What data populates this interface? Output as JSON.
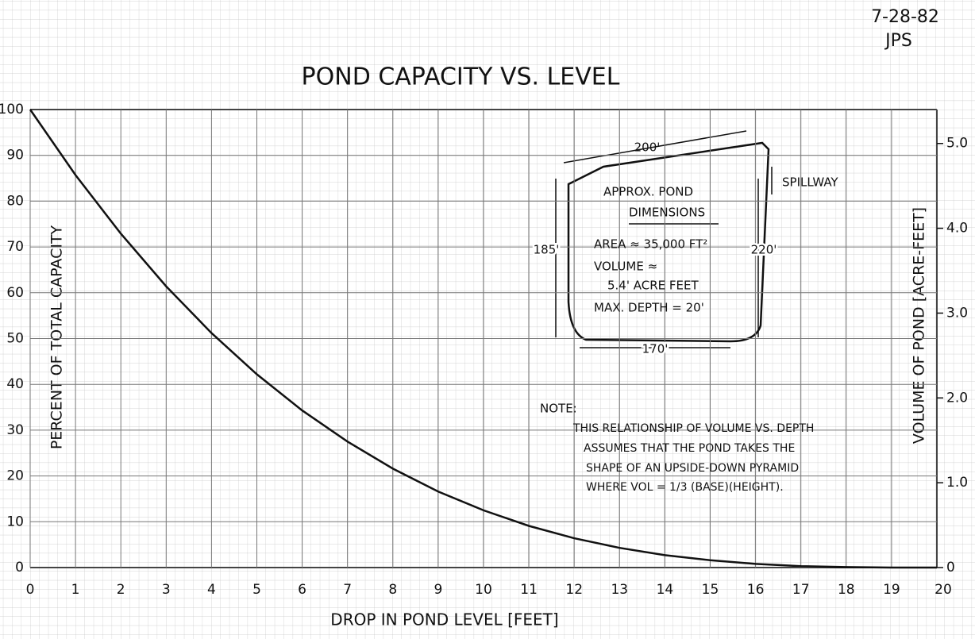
{
  "chart_data": {
    "type": "line",
    "title": "POND CAPACITY VS. LEVEL",
    "date": "7-28-82",
    "author": "JPS",
    "x_label": "DROP IN POND LEVEL [FEET]",
    "y_label": "PERCENT OF TOTAL CAPACITY",
    "y2_label": "VOLUME OF POND [ACRE-FEET]",
    "x": [
      0,
      1,
      2,
      3,
      4,
      5,
      6,
      7,
      8,
      9,
      10,
      11,
      12,
      13,
      14,
      15,
      16,
      17,
      18,
      19,
      20
    ],
    "values": [
      100,
      85.7,
      72.9,
      61.4,
      51.2,
      42.2,
      34.3,
      27.5,
      21.6,
      16.6,
      12.5,
      9.1,
      6.4,
      4.3,
      2.7,
      1.6,
      0.8,
      0.3,
      0.1,
      0,
      0
    ],
    "color": "#111111",
    "xlim": [
      0,
      20
    ],
    "xticks": [
      0,
      1,
      2,
      3,
      4,
      5,
      6,
      7,
      8,
      9,
      10,
      11,
      12,
      13,
      14,
      15,
      16,
      17,
      18,
      19,
      20
    ],
    "ylim": [
      0,
      100
    ],
    "yticks": [
      0,
      10,
      20,
      30,
      40,
      50,
      60,
      70,
      80,
      90,
      100
    ],
    "y2lim": [
      0,
      5.4
    ],
    "y2ticks": [
      0,
      {
        "value": 1,
        "label": "1.0"
      },
      {
        "value": 2,
        "label": "2.0"
      },
      {
        "value": 3,
        "label": "3.0"
      },
      {
        "value": 4,
        "label": "4.0"
      },
      {
        "value": 5,
        "label": "5.0"
      }
    ],
    "grid": true,
    "annotations": [
      "200'",
      "SPILLWAY",
      "APPROX. POND",
      "DIMENSIONS",
      "AREA ≈ 35,000 FT²",
      "VOLUME ≈",
      "5.4' ACRE FEET",
      "MAX. DEPTH = 20'",
      "185'",
      "220'",
      "170'",
      "NOTE:",
      "THIS RELATIONSHIP OF VOLUME VS. DEPTH",
      "ASSUMES THAT THE POND TAKES THE",
      "SHAPE OF AN UPSIDE-DOWN PYRAMID",
      "WHERE VOL = 1/3 (BASE)(HEIGHT)."
    ]
  }
}
